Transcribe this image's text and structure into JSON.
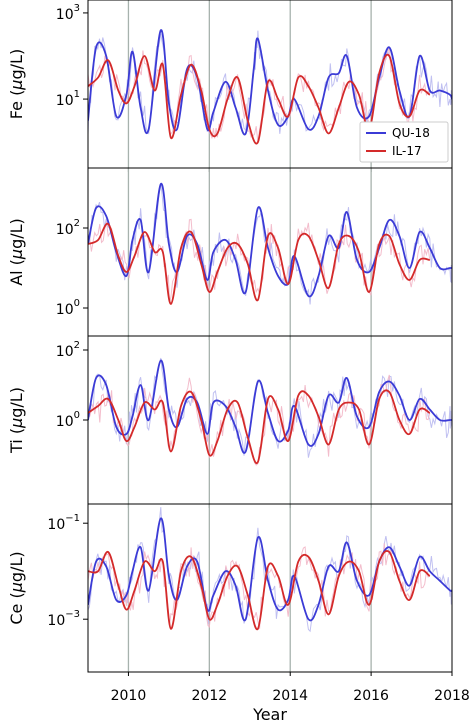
{
  "chart_data": {
    "type": "line",
    "xlabel": "Year",
    "xlim": [
      2009,
      2018
    ],
    "x_ticks": [
      "2010",
      "2012",
      "2014",
      "2016",
      "2018"
    ],
    "x_tick_values": [
      2010,
      2012,
      2014,
      2016,
      2018
    ],
    "vertical_gridlines": [
      2010,
      2012,
      2014,
      2016
    ],
    "legend": {
      "position": "right, inside top panel",
      "entries": [
        {
          "name": "QU-18",
          "color": "#3b3bd6"
        },
        {
          "name": "IL-17",
          "color": "#d42a2a"
        }
      ]
    },
    "colors": {
      "QU-18": "#3b3bd6",
      "IL-17": "#d42a2a",
      "QU-18 raw": "#b9b9f0",
      "IL-17 raw": "#f2b6c6",
      "grid": "#a7b2ad"
    },
    "panels": [
      {
        "ylabel_prefix": "Fe",
        "ylabel_units": "g/L",
        "scale": "log",
        "ylim_log10": [
          -0.6,
          3.3
        ],
        "y_ticks": [
          {
            "base": "10",
            "exp": "1",
            "log10": 1
          },
          {
            "base": "10",
            "exp": "3",
            "log10": 3
          }
        ],
        "series": [
          {
            "name": "QU-18",
            "x": [
              2009.0,
              2009.2,
              2009.45,
              2009.7,
              2009.95,
              2010.1,
              2010.3,
              2010.5,
              2010.8,
              2011.0,
              2011.2,
              2011.45,
              2011.7,
              2011.95,
              2012.1,
              2012.4,
              2012.65,
              2012.9,
              2013.1,
              2013.2,
              2013.45,
              2013.7,
              2013.95,
              2014.1,
              2014.45,
              2014.7,
              2014.95,
              2015.2,
              2015.4,
              2015.65,
              2015.95,
              2016.2,
              2016.45,
              2016.7,
              2016.95,
              2017.2,
              2017.45,
              2017.7,
              2017.95,
              2018.0
            ],
            "values": [
              0.5,
              2.2,
              2.0,
              0.6,
              1.1,
              2.1,
              0.8,
              0.3,
              2.6,
              0.9,
              0.3,
              1.7,
              1.5,
              0.3,
              0.7,
              1.4,
              0.8,
              0.2,
              1.7,
              2.4,
              1.2,
              0.4,
              0.6,
              1.0,
              0.3,
              0.6,
              1.5,
              1.6,
              2.0,
              0.8,
              0.6,
              1.5,
              2.2,
              1.2,
              0.6,
              2.0,
              1.2,
              1.2,
              1.1,
              1.0
            ]
          },
          {
            "name": "IL-17",
            "x": [
              2009.0,
              2009.25,
              2009.5,
              2009.75,
              2009.95,
              2010.15,
              2010.4,
              2010.65,
              2010.85,
              2011.05,
              2011.3,
              2011.55,
              2011.8,
              2012.0,
              2012.2,
              2012.45,
              2012.7,
              2012.95,
              2013.2,
              2013.45,
              2013.7,
              2013.95,
              2014.2,
              2014.45,
              2014.7,
              2014.95,
              2015.2,
              2015.45,
              2015.7,
              2015.95,
              2016.2,
              2016.45,
              2016.7,
              2016.95,
              2017.2,
              2017.45
            ],
            "values": [
              1.3,
              1.5,
              1.9,
              1.2,
              0.9,
              1.3,
              2.0,
              1.2,
              1.8,
              0.1,
              1.1,
              1.8,
              1.2,
              0.3,
              0.2,
              1.0,
              1.5,
              0.5,
              0.0,
              1.4,
              1.0,
              0.6,
              1.5,
              1.3,
              0.8,
              0.2,
              0.8,
              1.4,
              1.1,
              0.3,
              1.6,
              2.0,
              0.9,
              0.6,
              1.2,
              1.1
            ]
          }
        ]
      },
      {
        "ylabel_prefix": "Al",
        "ylabel_units": "g/L",
        "scale": "log",
        "ylim_log10": [
          -0.7,
          3.5
        ],
        "y_ticks": [
          {
            "base": "10",
            "exp": "0",
            "log10": 0
          },
          {
            "base": "10",
            "exp": "2",
            "log10": 2
          }
        ],
        "series": [
          {
            "name": "QU-18",
            "x": [
              2009.0,
              2009.2,
              2009.45,
              2009.7,
              2009.95,
              2010.1,
              2010.3,
              2010.5,
              2010.8,
              2011.0,
              2011.2,
              2011.45,
              2011.7,
              2011.95,
              2012.1,
              2012.4,
              2012.65,
              2012.9,
              2013.2,
              2013.45,
              2013.7,
              2013.95,
              2014.1,
              2014.45,
              2014.7,
              2014.95,
              2015.2,
              2015.4,
              2015.65,
              2015.95,
              2016.2,
              2016.45,
              2016.7,
              2016.95,
              2017.2,
              2017.45,
              2017.7,
              2017.95,
              2018.0
            ],
            "values": [
              1.6,
              2.5,
              2.3,
              1.4,
              0.8,
              1.7,
              2.2,
              0.9,
              3.1,
              1.6,
              0.9,
              1.8,
              1.6,
              0.7,
              1.4,
              1.7,
              1.2,
              0.4,
              2.5,
              1.5,
              0.8,
              0.6,
              1.3,
              0.3,
              0.8,
              1.8,
              1.5,
              2.4,
              1.2,
              0.9,
              1.5,
              2.2,
              1.8,
              1.0,
              1.9,
              1.5,
              1.0,
              1.0,
              1.0
            ]
          },
          {
            "name": "IL-17",
            "x": [
              2009.0,
              2009.25,
              2009.5,
              2009.75,
              2009.95,
              2010.15,
              2010.4,
              2010.65,
              2010.85,
              2011.05,
              2011.3,
              2011.55,
              2011.8,
              2012.0,
              2012.2,
              2012.45,
              2012.7,
              2012.95,
              2013.2,
              2013.45,
              2013.7,
              2013.95,
              2014.2,
              2014.45,
              2014.7,
              2014.95,
              2015.2,
              2015.45,
              2015.7,
              2015.95,
              2016.2,
              2016.45,
              2016.7,
              2016.95,
              2017.2,
              2017.45
            ],
            "values": [
              1.6,
              1.7,
              2.1,
              1.3,
              0.9,
              1.3,
              1.9,
              1.4,
              1.4,
              0.1,
              1.5,
              1.9,
              1.1,
              0.4,
              0.9,
              1.5,
              1.6,
              1.1,
              0.2,
              1.8,
              1.5,
              0.6,
              1.7,
              1.8,
              1.2,
              0.5,
              1.6,
              1.8,
              1.4,
              0.4,
              1.6,
              1.8,
              1.1,
              0.7,
              1.2,
              1.2
            ]
          }
        ]
      },
      {
        "ylabel_prefix": "Ti",
        "ylabel_units": "g/L",
        "scale": "log",
        "ylim_log10": [
          -2.4,
          2.4
        ],
        "y_ticks": [
          {
            "base": "10",
            "exp": "0",
            "log10": 0
          },
          {
            "base": "10",
            "exp": "2",
            "log10": 2
          }
        ],
        "series": [
          {
            "name": "QU-18",
            "x": [
              2009.0,
              2009.2,
              2009.45,
              2009.7,
              2009.95,
              2010.1,
              2010.3,
              2010.5,
              2010.8,
              2011.0,
              2011.2,
              2011.45,
              2011.7,
              2011.95,
              2012.1,
              2012.4,
              2012.65,
              2012.9,
              2013.2,
              2013.45,
              2013.7,
              2013.95,
              2014.1,
              2014.45,
              2014.7,
              2014.95,
              2015.2,
              2015.4,
              2015.65,
              2015.95,
              2016.2,
              2016.45,
              2016.7,
              2016.95,
              2017.2,
              2017.45,
              2017.7,
              2017.95,
              2018.0
            ],
            "values": [
              0.0,
              1.2,
              1.0,
              -0.2,
              -0.4,
              0.1,
              1.0,
              0.0,
              1.7,
              0.3,
              -0.2,
              0.6,
              0.5,
              -0.4,
              0.5,
              0.4,
              -0.2,
              -0.9,
              1.1,
              0.2,
              -0.6,
              -0.3,
              0.4,
              -0.7,
              -0.4,
              0.7,
              0.5,
              1.2,
              0.1,
              -0.2,
              0.8,
              1.1,
              0.7,
              0.0,
              0.6,
              0.3,
              0.0,
              0.0,
              0.0
            ]
          },
          {
            "name": "IL-17",
            "x": [
              2009.0,
              2009.25,
              2009.5,
              2009.75,
              2009.95,
              2010.15,
              2010.4,
              2010.65,
              2010.85,
              2011.05,
              2011.3,
              2011.55,
              2011.8,
              2012.0,
              2012.2,
              2012.45,
              2012.7,
              2012.95,
              2013.2,
              2013.45,
              2013.7,
              2013.95,
              2014.2,
              2014.45,
              2014.7,
              2014.95,
              2015.2,
              2015.45,
              2015.7,
              2015.95,
              2016.2,
              2016.45,
              2016.7,
              2016.95,
              2017.2,
              2017.45
            ],
            "values": [
              0.2,
              0.4,
              0.6,
              0.0,
              -0.6,
              -0.2,
              0.5,
              0.3,
              0.5,
              -0.9,
              0.4,
              0.8,
              0.0,
              -1.0,
              -0.6,
              0.3,
              0.5,
              -0.5,
              -1.2,
              0.6,
              0.3,
              -0.6,
              0.7,
              0.7,
              0.1,
              -0.7,
              0.3,
              0.5,
              0.3,
              -0.7,
              0.6,
              0.8,
              0.0,
              -0.4,
              0.3,
              0.2
            ]
          }
        ]
      },
      {
        "ylabel_prefix": "Ce",
        "ylabel_units": "g/L",
        "scale": "log",
        "ylim_log10": [
          -4.1,
          -0.6
        ],
        "y_ticks": [
          {
            "base": "10",
            "exp": "−3",
            "log10": -3
          },
          {
            "base": "10",
            "exp": "−1",
            "log10": -1
          }
        ],
        "series": [
          {
            "name": "QU-18",
            "x": [
              2009.0,
              2009.2,
              2009.45,
              2009.7,
              2009.95,
              2010.1,
              2010.3,
              2010.5,
              2010.8,
              2011.0,
              2011.2,
              2011.45,
              2011.7,
              2011.95,
              2012.1,
              2012.4,
              2012.65,
              2012.9,
              2013.2,
              2013.45,
              2013.7,
              2013.95,
              2014.1,
              2014.45,
              2014.7,
              2014.95,
              2015.2,
              2015.4,
              2015.65,
              2015.95,
              2016.2,
              2016.45,
              2016.7,
              2016.95,
              2017.2,
              2017.45,
              2017.7,
              2017.95,
              2018.0
            ],
            "values": [
              -2.7,
              -1.8,
              -1.9,
              -2.6,
              -2.5,
              -2.0,
              -1.5,
              -2.4,
              -0.9,
              -2.1,
              -2.6,
              -1.9,
              -1.8,
              -2.8,
              -2.5,
              -2.0,
              -2.3,
              -3.0,
              -1.3,
              -2.2,
              -2.8,
              -2.6,
              -2.1,
              -3.0,
              -2.7,
              -1.9,
              -2.0,
              -1.4,
              -2.2,
              -2.5,
              -1.8,
              -1.5,
              -1.9,
              -2.3,
              -1.7,
              -2.0,
              -2.2,
              -2.4,
              -2.4
            ]
          },
          {
            "name": "IL-17",
            "x": [
              2009.0,
              2009.25,
              2009.5,
              2009.75,
              2009.95,
              2010.15,
              2010.4,
              2010.65,
              2010.85,
              2011.05,
              2011.3,
              2011.55,
              2011.8,
              2012.0,
              2012.2,
              2012.45,
              2012.7,
              2012.95,
              2013.2,
              2013.45,
              2013.7,
              2013.95,
              2014.2,
              2014.45,
              2014.7,
              2014.95,
              2015.2,
              2015.45,
              2015.7,
              2015.95,
              2016.2,
              2016.45,
              2016.7,
              2016.95,
              2017.2,
              2017.45
            ],
            "values": [
              -2.0,
              -2.0,
              -1.6,
              -2.3,
              -2.8,
              -2.4,
              -1.8,
              -2.0,
              -1.8,
              -3.2,
              -2.0,
              -1.7,
              -2.3,
              -3.0,
              -2.7,
              -2.1,
              -1.9,
              -2.5,
              -3.2,
              -1.9,
              -2.1,
              -2.7,
              -1.8,
              -1.7,
              -2.2,
              -2.9,
              -2.1,
              -1.8,
              -2.0,
              -2.7,
              -1.8,
              -1.6,
              -2.2,
              -2.6,
              -2.0,
              -2.1
            ]
          }
        ]
      }
    ]
  }
}
